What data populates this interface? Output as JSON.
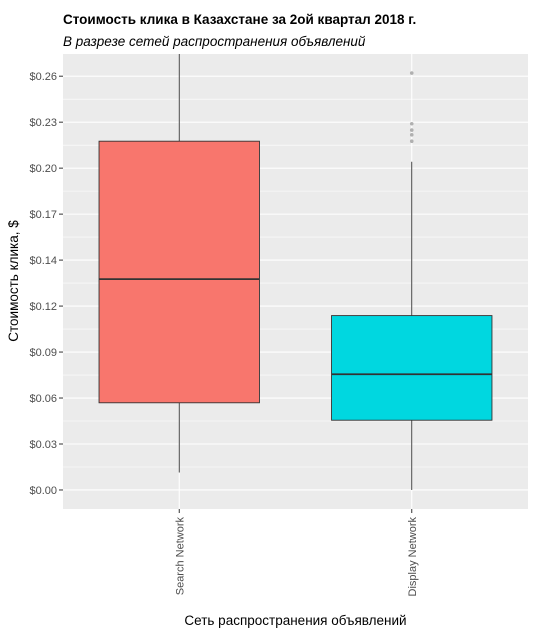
{
  "chart_data": {
    "type": "box",
    "title": "Стоимость клика в Казахстане за 2ой квартал 2018 г.",
    "subtitle": "В разрезе сетей распространения объявлений",
    "xlabel": "Сеть распространения объявлений",
    "ylabel": "Стоимость клика, $",
    "ylim": [
      -0.012,
      0.275
    ],
    "y_ticks": [
      0.0,
      0.029,
      0.058,
      0.087,
      0.116,
      0.145,
      0.174,
      0.203,
      0.232,
      0.261
    ],
    "y_tick_labels": [
      "$0.00",
      "$0.03",
      "$0.06",
      "$0.09",
      "$0.12",
      "$0.14",
      "$0.17",
      "$0.20",
      "$0.23",
      "$0.26"
    ],
    "categories": [
      "Search Network",
      "Display Network"
    ],
    "series": [
      {
        "category": "Search Network",
        "whisker_low": 0.011,
        "q1": 0.055,
        "median": 0.133,
        "q3": 0.22,
        "whisker_high": 0.275,
        "outliers": [],
        "color": "#F8766D"
      },
      {
        "category": "Display Network",
        "whisker_low": 0.0,
        "q1": 0.044,
        "median": 0.073,
        "q3": 0.11,
        "whisker_high": 0.207,
        "outliers": [
          0.22,
          0.224,
          0.227,
          0.231,
          0.263
        ],
        "color": "#00D7E0"
      }
    ],
    "grid": true,
    "legend": "none"
  }
}
